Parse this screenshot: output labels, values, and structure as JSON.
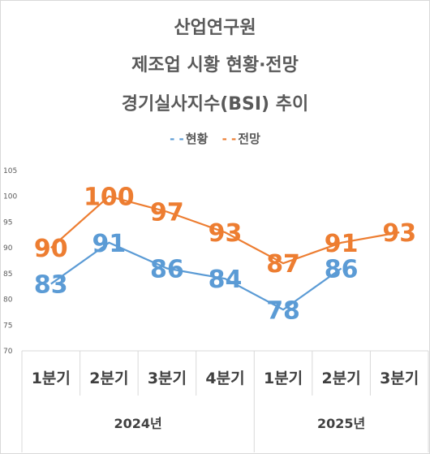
{
  "title_lines": [
    "산업연구원",
    "제조업 시황 현황·전망",
    "경기실사지수(BSI) 추이"
  ],
  "chart_data": {
    "type": "line",
    "title": "산업연구원 제조업 시황 현황·전망 경기실사지수(BSI) 추이",
    "categories": [
      "1분기",
      "2분기",
      "3분기",
      "4분기",
      "1분기",
      "2분기",
      "3분기"
    ],
    "groups": [
      {
        "label": "2024년",
        "span": 4
      },
      {
        "label": "2025년",
        "span": 3
      }
    ],
    "series": [
      {
        "name": "현황",
        "color": "#5b9bd5",
        "values": [
          83,
          91,
          86,
          84,
          78,
          86,
          null
        ]
      },
      {
        "name": "전망",
        "color": "#ed7d31",
        "values": [
          90,
          100,
          97,
          93,
          87,
          91,
          93
        ]
      }
    ],
    "ylim": [
      70,
      105
    ],
    "yticks": [
      70,
      75,
      80,
      85,
      90,
      95,
      100,
      105
    ],
    "legend": "top",
    "grid": false
  }
}
